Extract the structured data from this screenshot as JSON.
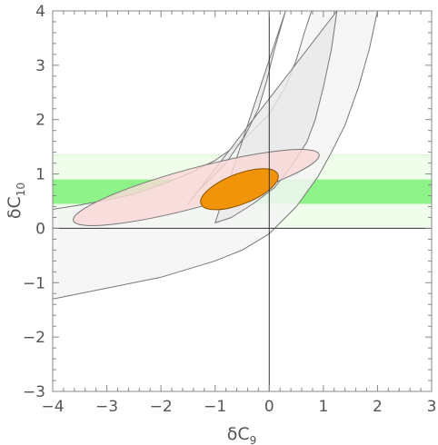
{
  "chart_data": {
    "type": "contour",
    "title": "",
    "xlabel": "δC",
    "xlabel_sub": "9",
    "ylabel": "δC",
    "ylabel_sub": "10",
    "xlim": [
      -4,
      3
    ],
    "ylim": [
      -3,
      4
    ],
    "x_ticks": [
      -4,
      -3,
      -2,
      -1,
      0,
      1,
      2,
      3
    ],
    "x_tick_labels": [
      "−4",
      "−3",
      "−2",
      "−1",
      "0",
      "1",
      "2",
      "3"
    ],
    "y_ticks": [
      -3,
      -2,
      -1,
      0,
      1,
      2,
      3,
      4
    ],
    "y_tick_labels": [
      "−3",
      "−2",
      "−1",
      "0",
      "1",
      "2",
      "3",
      "4"
    ],
    "grid": false,
    "bands": [
      {
        "region": "outer-band",
        "ymin": 0.0,
        "ymax": 1.35,
        "color": "#f0fdea"
      },
      {
        "region": "inner-band",
        "ymin": 0.45,
        "ymax": 0.9,
        "color": "#8ef48a"
      }
    ],
    "arcs": [
      {
        "region": "outer-arc",
        "color": "#f4f4f4",
        "outer_edge": [
          [
            -4,
            0.35
          ],
          [
            -3.5,
            0.43
          ],
          [
            -3,
            0.52
          ],
          [
            -2.5,
            0.63
          ],
          [
            -2,
            0.8
          ],
          [
            -1.5,
            1.0
          ],
          [
            -1,
            1.25
          ],
          [
            -0.5,
            1.6
          ],
          [
            0,
            2.1
          ],
          [
            0.3,
            2.6
          ],
          [
            0.5,
            3.1
          ],
          [
            0.65,
            3.6
          ],
          [
            0.78,
            4
          ]
        ],
        "inner_edge": [
          [
            2.0,
            4
          ],
          [
            1.85,
            3.3
          ],
          [
            1.65,
            2.6
          ],
          [
            1.4,
            1.9
          ],
          [
            1.15,
            1.4
          ],
          [
            0.9,
            0.95
          ],
          [
            0.5,
            0.4
          ],
          [
            0.2,
            0.1
          ],
          [
            0,
            -0.1
          ],
          [
            -0.5,
            -0.4
          ],
          [
            -1,
            -0.6
          ],
          [
            -2,
            -0.9
          ],
          [
            -3,
            -1.1
          ],
          [
            -4,
            -1.3
          ]
        ]
      },
      {
        "region": "inner-arc",
        "color": "#e8e8e8",
        "outer_edge": [
          [
            0.3,
            4
          ],
          [
            0.1,
            3.3
          ],
          [
            -0.05,
            2.7
          ],
          [
            -0.2,
            2.2
          ],
          [
            -0.45,
            1.7
          ],
          [
            -0.8,
            1.2
          ],
          [
            -1.1,
            0.9
          ],
          [
            -1.3,
            0.7
          ],
          [
            -1.5,
            0.45
          ]
        ],
        "inner_edge": [
          [
            1.25,
            4
          ],
          [
            1.15,
            3.3
          ],
          [
            1.0,
            2.6
          ],
          [
            0.85,
            2.0
          ],
          [
            0.7,
            1.6
          ],
          [
            0.45,
            1.2
          ],
          [
            0.1,
            0.75
          ],
          [
            -0.3,
            0.45
          ],
          [
            -0.7,
            0.2
          ],
          [
            -1.0,
            0.1
          ]
        ]
      }
    ],
    "ellipses": [
      {
        "region": "pink-ellipse",
        "center": [
          -1.35,
          0.75
        ],
        "semi_major": 2.35,
        "semi_minor": 0.36,
        "angle_deg": 15,
        "color": "#fbd8d8"
      },
      {
        "region": "orange-ellipse",
        "center": [
          -0.55,
          0.72
        ],
        "semi_major": 0.76,
        "semi_minor": 0.28,
        "angle_deg": 21,
        "color": "#f29409"
      }
    ]
  }
}
